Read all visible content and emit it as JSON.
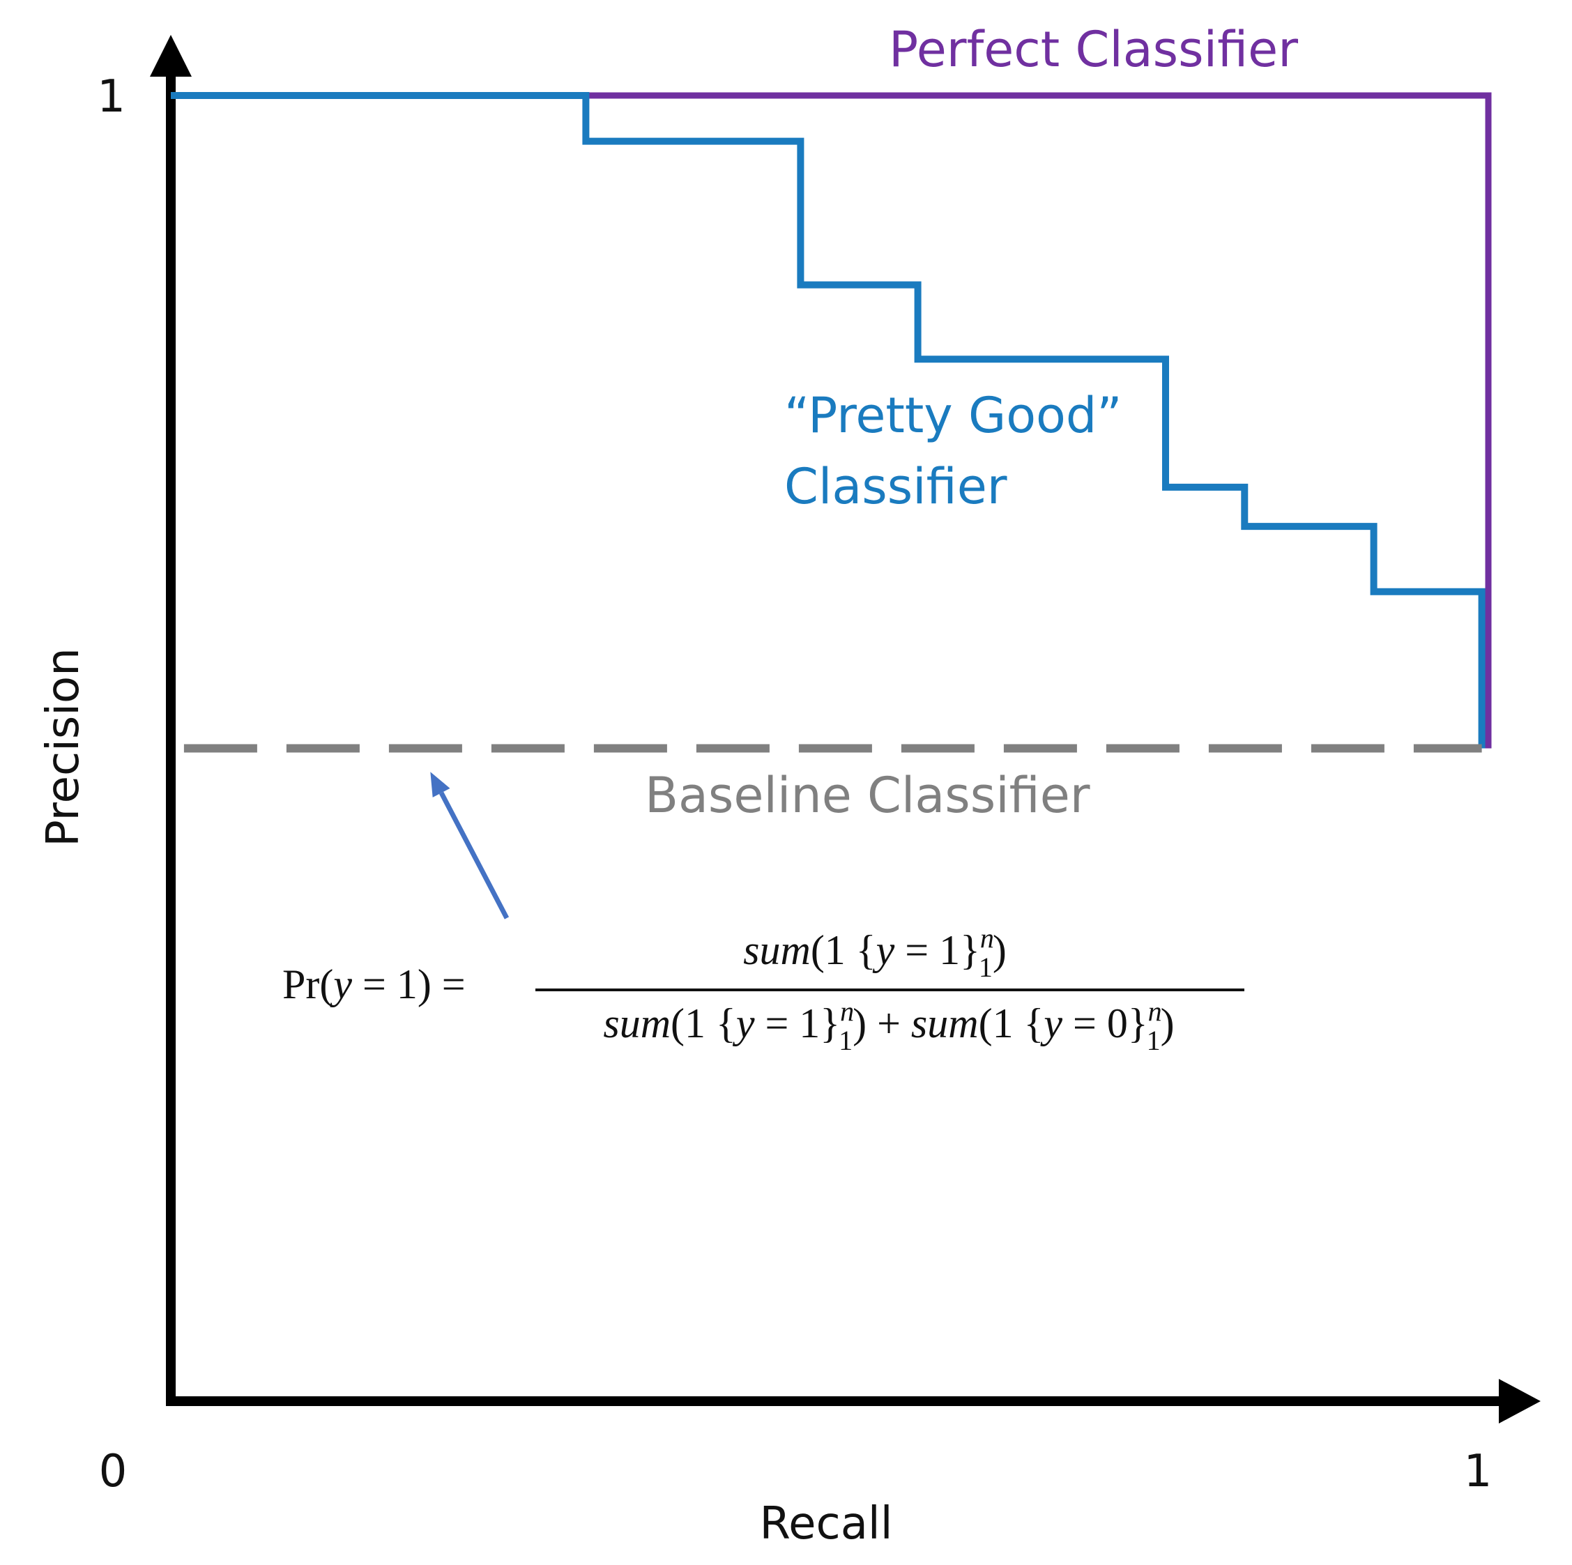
{
  "chart_data": {
    "type": "line",
    "title": "",
    "xlabel": "Recall",
    "ylabel": "Precision",
    "xlim": [
      0,
      1
    ],
    "ylim": [
      0,
      1
    ],
    "x_ticks": [
      "0",
      "1"
    ],
    "y_ticks": [
      "1"
    ],
    "grid": false,
    "series": [
      {
        "name": "Perfect Classifier",
        "color": "#7030a0",
        "style": "solid",
        "x": [
          0,
          1,
          1
        ],
        "y": [
          1,
          1,
          0.5
        ]
      },
      {
        "name": "“Pretty Good” Classifier",
        "label_lines": [
          "“Pretty Good”",
          "Classifier"
        ],
        "color": "#1a7bbf",
        "style": "step",
        "x": [
          0,
          0.315,
          0.315,
          0.478,
          0.478,
          0.567,
          0.567,
          0.755,
          0.755,
          0.815,
          0.815,
          0.913,
          0.913,
          0.995,
          0.995
        ],
        "y": [
          1,
          1,
          0.965,
          0.965,
          0.855,
          0.855,
          0.798,
          0.798,
          0.7,
          0.7,
          0.67,
          0.67,
          0.62,
          0.62,
          0.5
        ]
      },
      {
        "name": "Baseline Classifier",
        "color": "#808080",
        "style": "dashed",
        "x": [
          0.01,
          0.995
        ],
        "y": [
          0.5,
          0.5
        ]
      }
    ],
    "annotation": {
      "color": "#4472c4",
      "arrow_from": [
        0.255,
        0.37
      ],
      "arrow_to": [
        0.197,
        0.482
      ],
      "formula": {
        "lhs_prefix": "Pr(",
        "lhs_var": "y",
        "lhs_suffix": " = 1) =",
        "num_fn": "sum",
        "num_open": "(1 {",
        "num_var": "y",
        "num_close": " = 1}",
        "num_sup": "n",
        "num_sub": "1",
        "num_tail": ")",
        "den_fn1": "sum",
        "den_open1": "(1 {",
        "den_var1": "y",
        "den_close1": " = 1}",
        "den_sup1": "n",
        "den_sub1": "1",
        "den_mid": ") + ",
        "den_fn2": "sum",
        "den_open2": "(1 {",
        "den_var2": "y",
        "den_close2": " = 0}",
        "den_sup2": "n",
        "den_sub2": "1",
        "den_tail": ")"
      }
    }
  }
}
